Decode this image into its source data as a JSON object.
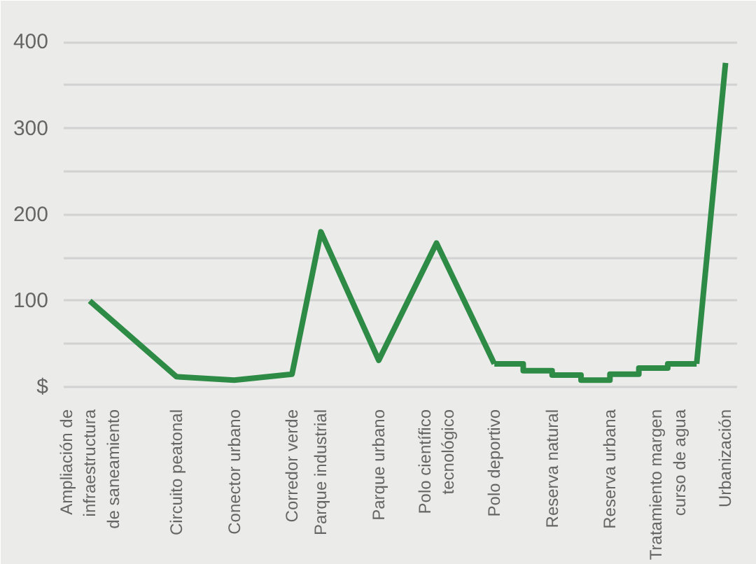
{
  "chart_data": {
    "type": "line",
    "categories": [
      "Ampliación de\ninfraestructura\nde saneamiento",
      null,
      null,
      "Circuito peatonal",
      null,
      "Conector urbano",
      null,
      "Corredor verde",
      "Parque industrial",
      null,
      "Parque urbano",
      null,
      "Polo científico\ntecnológico",
      null,
      "Polo deportivo",
      null,
      "Reserva natural",
      null,
      "Reserva urbana",
      null,
      "Tratamiento margen\ncurso de agua",
      null,
      "Urbanización"
    ],
    "series": [
      {
        "color": "#2e8b45",
        "values": [
          100,
          null,
          null,
          12,
          null,
          8,
          null,
          15,
          180,
          null,
          31,
          null,
          167,
          null,
          27,
          null,
          null,
          null,
          null,
          null,
          null,
          null,
          null
        ]
      },
      {
        "type": "step",
        "color": "#2e8b45",
        "values": [
          null,
          null,
          null,
          null,
          null,
          null,
          null,
          null,
          null,
          null,
          null,
          null,
          null,
          null,
          27,
          19,
          14,
          8,
          15,
          22,
          27,
          27,
          null
        ]
      },
      {
        "color": "#2e8b45",
        "values": [
          null,
          null,
          null,
          null,
          null,
          null,
          null,
          null,
          null,
          null,
          null,
          null,
          null,
          null,
          null,
          null,
          null,
          null,
          null,
          null,
          null,
          27,
          376
        ]
      }
    ],
    "ylim": [
      -8,
      440
    ],
    "yticks": [
      {
        "value": 0,
        "label": "$"
      },
      {
        "value": 50,
        "label": null
      },
      100,
      {
        "value": 150,
        "label": null
      },
      200,
      {
        "value": 250,
        "label": null
      },
      300,
      {
        "value": 350,
        "label": null
      },
      400
    ],
    "grid": "y",
    "marker": "none",
    "line_style": "solid"
  }
}
